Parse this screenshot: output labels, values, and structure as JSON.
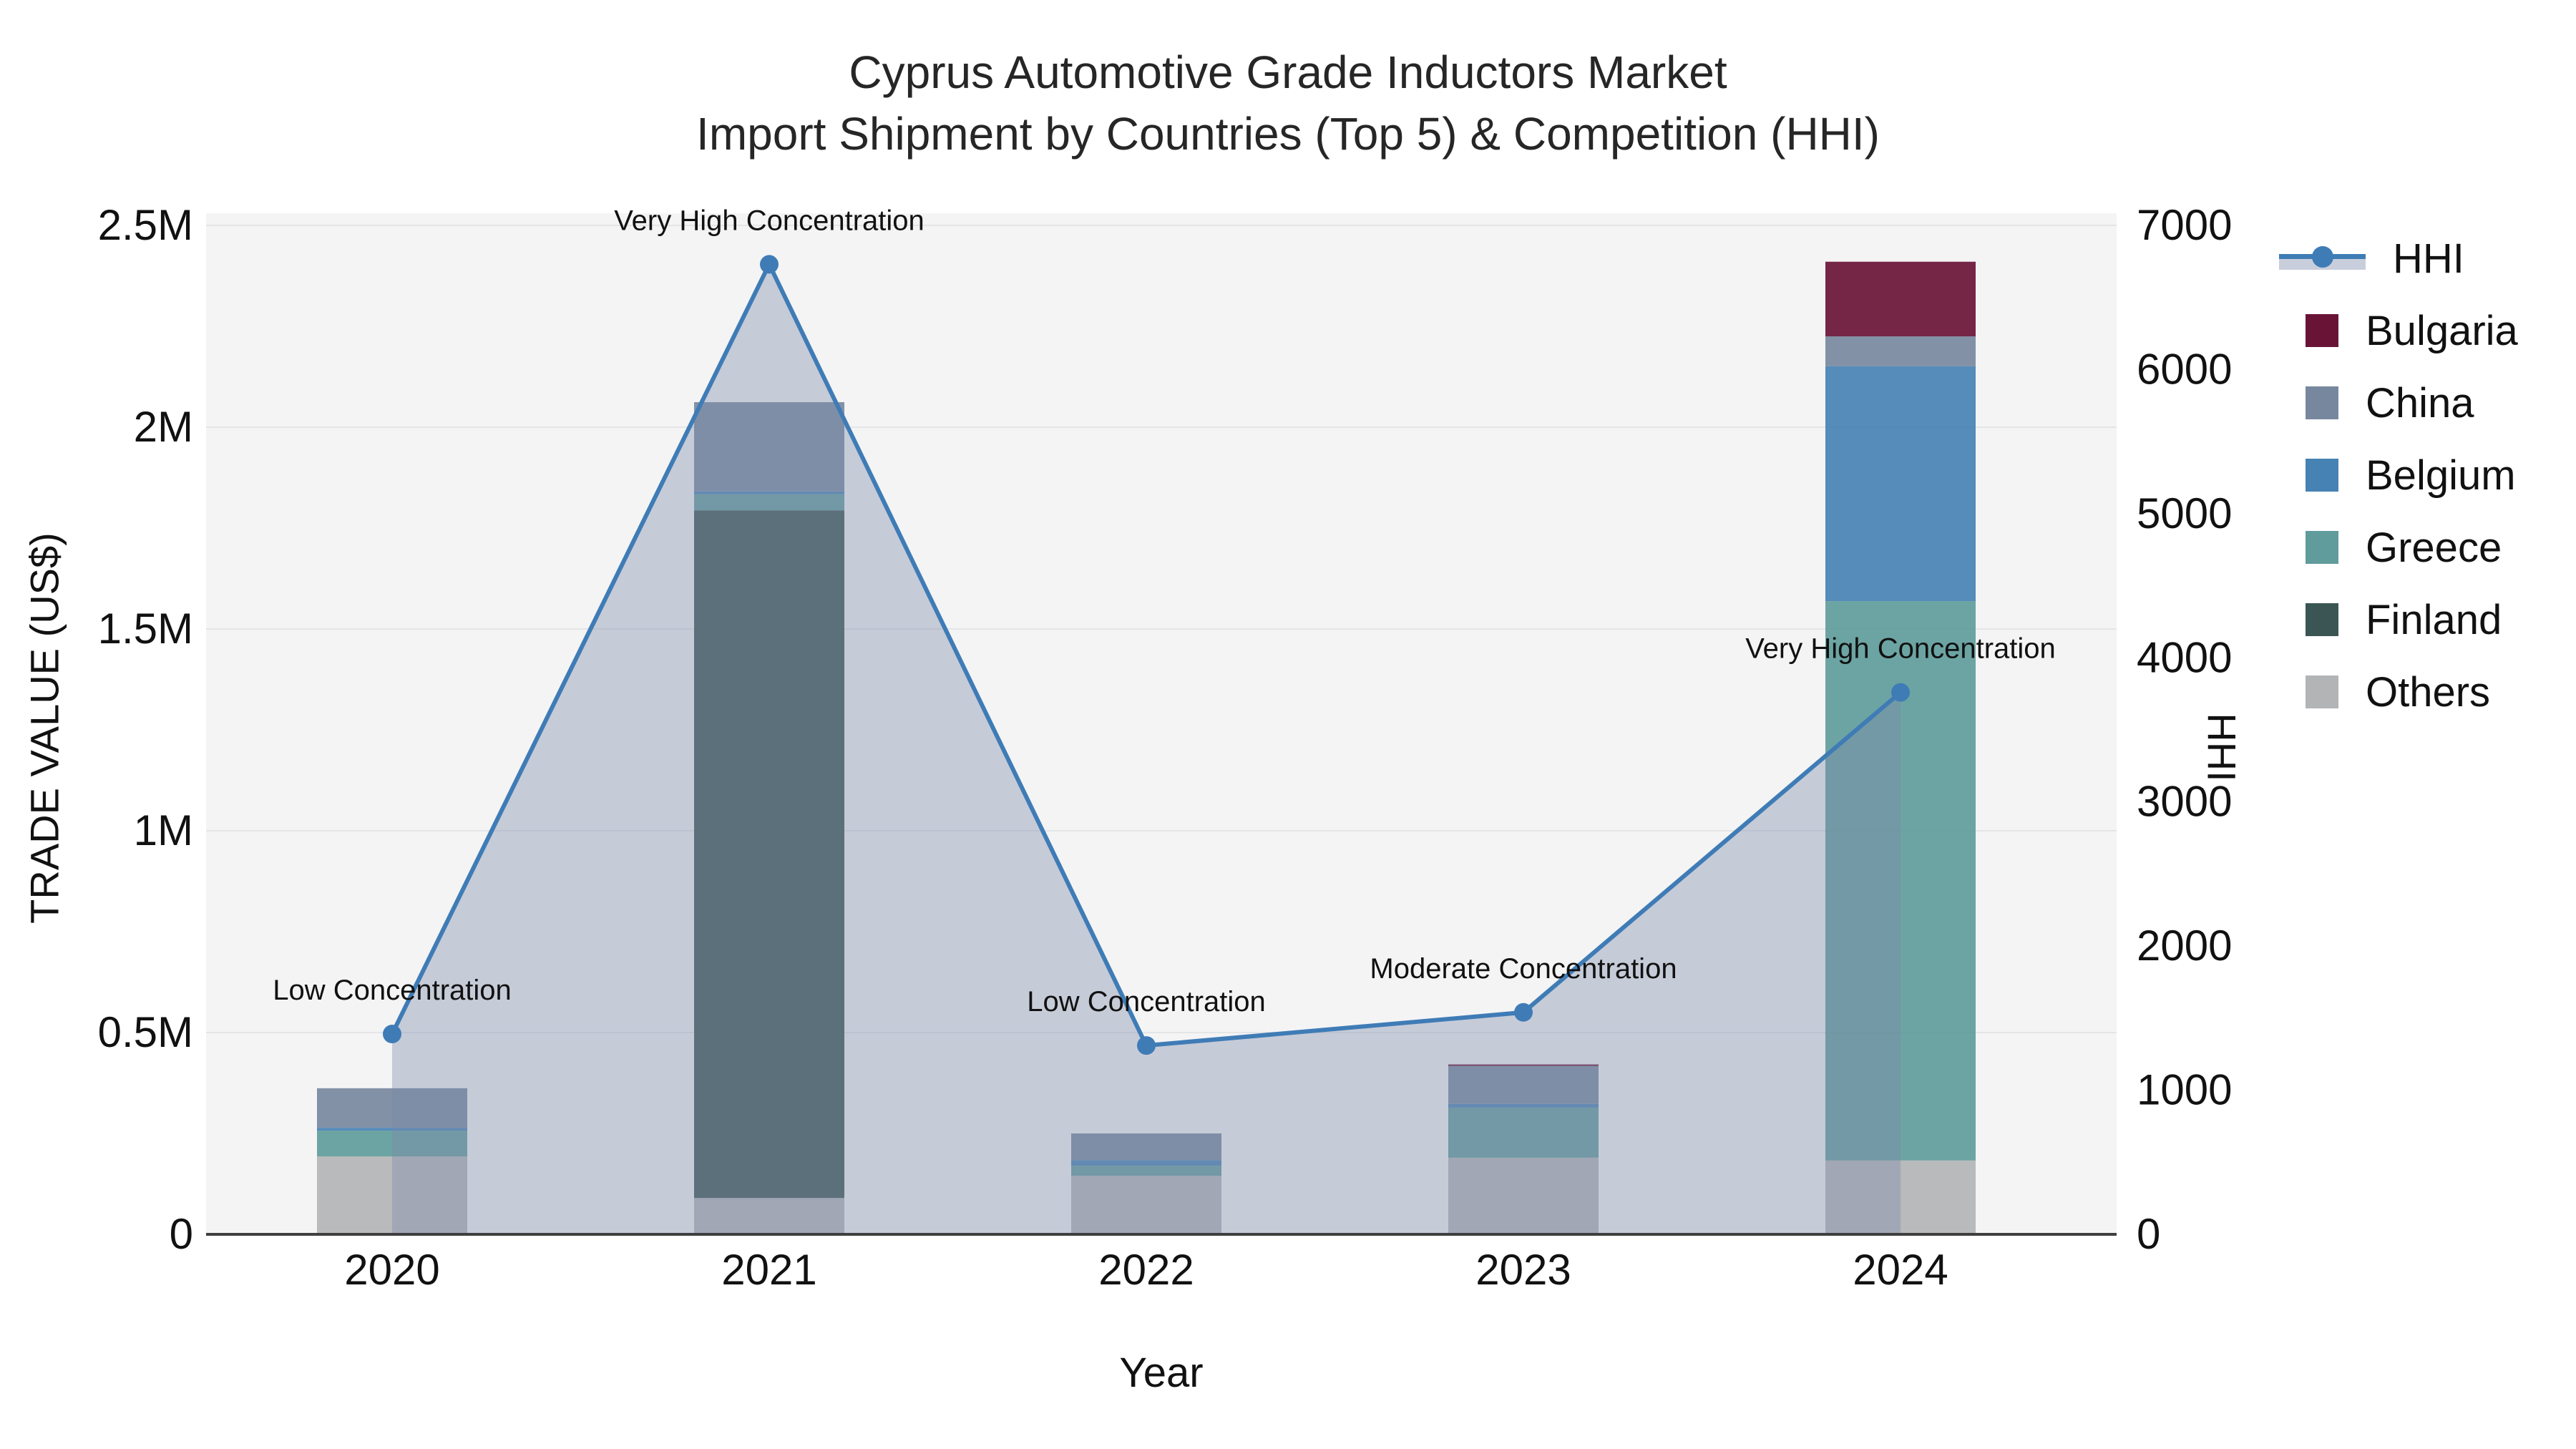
{
  "title": {
    "line1": "Cyprus Automotive Grade Inductors Market",
    "line2": "Import Shipment by Countries (Top 5) & Competition (HHI)"
  },
  "axes": {
    "x_title": "Year",
    "y_left_title": "TRADE VALUE (US$)",
    "y_right_title": "HHI",
    "y_left_ticks": [
      {
        "label": "0",
        "value": 0
      },
      {
        "label": "0.5M",
        "value": 500000
      },
      {
        "label": "1M",
        "value": 1000000
      },
      {
        "label": "1.5M",
        "value": 1500000
      },
      {
        "label": "2M",
        "value": 2000000
      },
      {
        "label": "2.5M",
        "value": 2500000
      }
    ],
    "y_right_ticks": [
      {
        "label": "0",
        "value": 0
      },
      {
        "label": "1000",
        "value": 1000
      },
      {
        "label": "2000",
        "value": 2000
      },
      {
        "label": "3000",
        "value": 3000
      },
      {
        "label": "4000",
        "value": 4000
      },
      {
        "label": "5000",
        "value": 5000
      },
      {
        "label": "6000",
        "value": 6000
      },
      {
        "label": "7000",
        "value": 7000
      }
    ]
  },
  "legend": {
    "items": [
      {
        "label": "HHI",
        "type": "line",
        "color": "#3f7cb6",
        "band": "#c9cedc"
      },
      {
        "label": "Bulgaria",
        "type": "swatch",
        "color": "#691437"
      },
      {
        "label": "China",
        "type": "swatch",
        "color": "#77889e"
      },
      {
        "label": "Belgium",
        "type": "swatch",
        "color": "#4682b4"
      },
      {
        "label": "Greece",
        "type": "swatch",
        "color": "#609c9b"
      },
      {
        "label": "Finland",
        "type": "swatch",
        "color": "#3a5554"
      },
      {
        "label": "Others",
        "type": "swatch",
        "color": "#b2b4b5"
      }
    ]
  },
  "chart_data": {
    "type": "bar+line",
    "title": "Cyprus Automotive Grade Inductors Market — Import Shipment by Countries (Top 5) & Competition (HHI)",
    "xlabel": "Year",
    "ylabel_left": "TRADE VALUE (US$)",
    "ylabel_right": "HHI",
    "categories": [
      "2020",
      "2021",
      "2022",
      "2023",
      "2024"
    ],
    "ylim_left": [
      0,
      2500000
    ],
    "ylim_right": [
      0,
      7000
    ],
    "grid": true,
    "legend_position": "right",
    "stack_order_bottom_to_top": [
      "Others",
      "Finland",
      "Greece",
      "Belgium",
      "China",
      "Bulgaria"
    ],
    "series": [
      {
        "name": "Bulgaria",
        "color": "#691437",
        "values": [
          0,
          0,
          0,
          4000,
          185000
        ]
      },
      {
        "name": "China",
        "color": "#77889e",
        "values": [
          98000,
          221000,
          66000,
          94000,
          74000
        ]
      },
      {
        "name": "Belgium",
        "color": "#4682b4",
        "values": [
          7000,
          7000,
          14000,
          9000,
          582000
        ]
      },
      {
        "name": "Greece",
        "color": "#609c9b",
        "values": [
          64000,
          40000,
          25000,
          124000,
          1386000
        ]
      },
      {
        "name": "Finland",
        "color": "#3a5554",
        "values": [
          0,
          1704000,
          0,
          0,
          0
        ]
      },
      {
        "name": "Others",
        "color": "#b2b4b5",
        "values": [
          193000,
          90000,
          145000,
          190000,
          183000
        ]
      }
    ],
    "bar_totals": [
      362000,
      2062000,
      250000,
      421000,
      2410000
    ],
    "line_series": {
      "name": "HHI",
      "color": "#3f7cb6",
      "area_fill": "rgba(123,137,168,0.38)",
      "values": [
        1390,
        6730,
        1310,
        1540,
        3760
      ]
    },
    "annotations": [
      {
        "category": "2020",
        "text": "Low Concentration"
      },
      {
        "category": "2021",
        "text": "Very High Concentration"
      },
      {
        "category": "2022",
        "text": "Low Concentration"
      },
      {
        "category": "2023",
        "text": "Moderate Concentration"
      },
      {
        "category": "2024",
        "text": "Very High Concentration"
      }
    ]
  },
  "style": {
    "plot_bg": "#f4f4f5",
    "grid_color": "#e4e5e7",
    "axis_line_color": "#3f3f3f",
    "annotation_color": "#111111"
  }
}
